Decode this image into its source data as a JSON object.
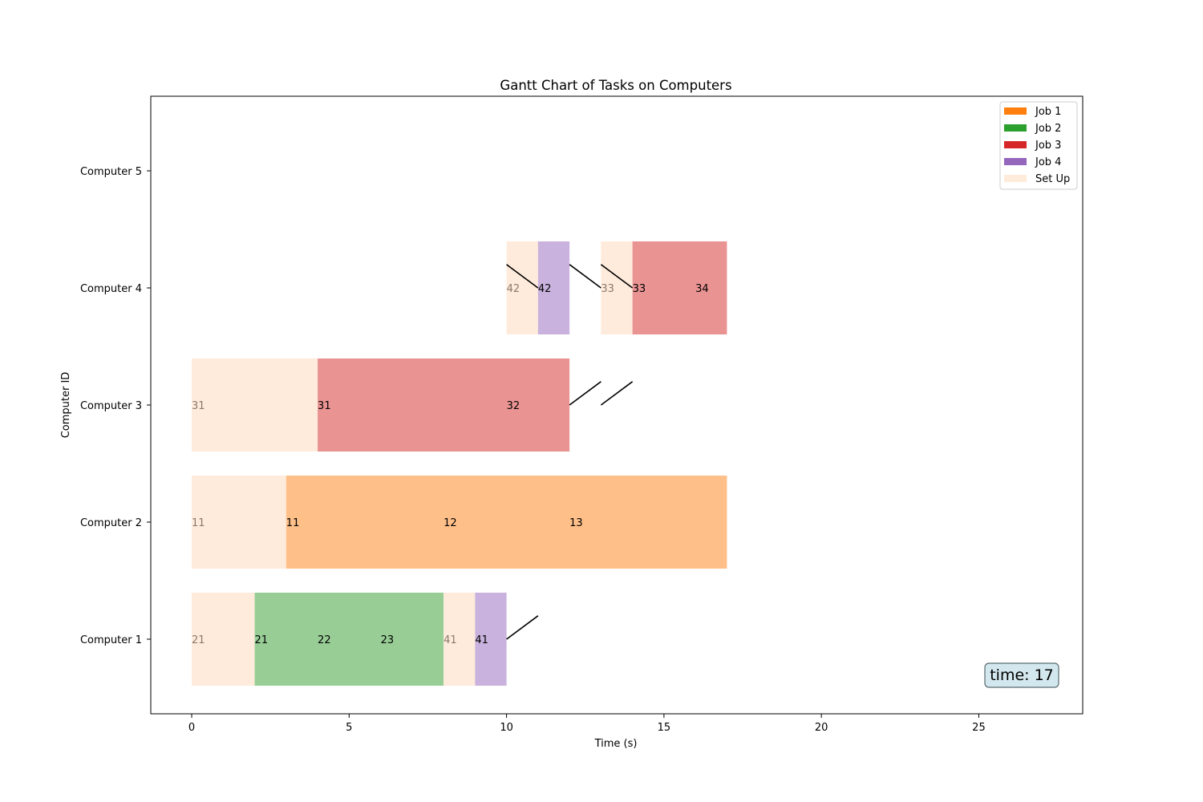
{
  "chart_data": {
    "type": "gantt",
    "title": "Gantt Chart of Tasks on Computers",
    "xlabel": "Time (s)",
    "ylabel": "Computer ID",
    "xlim": [
      -1.3,
      28.3
    ],
    "xticks": [
      0,
      5,
      10,
      15,
      20,
      25
    ],
    "categories": [
      "Computer 1",
      "Computer 2",
      "Computer 3",
      "Computer 4",
      "Computer 5"
    ],
    "grid": false,
    "legend_position": "top-right",
    "legend": [
      {
        "label": "Job 1",
        "color": "#ff7f0e",
        "style": "job"
      },
      {
        "label": "Job 2",
        "color": "#2ca02c",
        "style": "job"
      },
      {
        "label": "Job 3",
        "color": "#d62728",
        "style": "job"
      },
      {
        "label": "Job 4",
        "color": "#9467bd",
        "style": "job"
      },
      {
        "label": "Set Up",
        "color": "#ffebd9",
        "style": "setup"
      }
    ],
    "colors": {
      "setup": "#ffebdb",
      "job1": "#febf88",
      "job2": "#98ce96",
      "job3": "#e99392",
      "job4": "#c9b2dd"
    },
    "bars": [
      {
        "computer": 1,
        "start": 0,
        "end": 2,
        "kind": "setup"
      },
      {
        "computer": 1,
        "start": 2,
        "end": 8,
        "kind": "job2"
      },
      {
        "computer": 1,
        "start": 8,
        "end": 9,
        "kind": "setup"
      },
      {
        "computer": 1,
        "start": 9,
        "end": 10,
        "kind": "job4"
      },
      {
        "computer": 2,
        "start": 0,
        "end": 3,
        "kind": "setup"
      },
      {
        "computer": 2,
        "start": 3,
        "end": 17,
        "kind": "job1"
      },
      {
        "computer": 3,
        "start": 0,
        "end": 4,
        "kind": "setup"
      },
      {
        "computer": 3,
        "start": 4,
        "end": 12,
        "kind": "job3"
      },
      {
        "computer": 4,
        "start": 10,
        "end": 11,
        "kind": "setup"
      },
      {
        "computer": 4,
        "start": 11,
        "end": 12,
        "kind": "job4"
      },
      {
        "computer": 4,
        "start": 13,
        "end": 14,
        "kind": "setup"
      },
      {
        "computer": 4,
        "start": 14,
        "end": 17,
        "kind": "job3"
      }
    ],
    "task_labels": [
      {
        "computer": 1,
        "x": 0,
        "text": "21",
        "kind": "setup"
      },
      {
        "computer": 1,
        "x": 2,
        "text": "21",
        "kind": "task"
      },
      {
        "computer": 1,
        "x": 4,
        "text": "22",
        "kind": "task"
      },
      {
        "computer": 1,
        "x": 6,
        "text": "23",
        "kind": "task"
      },
      {
        "computer": 1,
        "x": 8,
        "text": "41",
        "kind": "setup"
      },
      {
        "computer": 1,
        "x": 9,
        "text": "41",
        "kind": "task"
      },
      {
        "computer": 2,
        "x": 0,
        "text": "11",
        "kind": "setup"
      },
      {
        "computer": 2,
        "x": 3,
        "text": "11",
        "kind": "task"
      },
      {
        "computer": 2,
        "x": 8,
        "text": "12",
        "kind": "task"
      },
      {
        "computer": 2,
        "x": 12,
        "text": "13",
        "kind": "task"
      },
      {
        "computer": 3,
        "x": 0,
        "text": "31",
        "kind": "setup"
      },
      {
        "computer": 3,
        "x": 4,
        "text": "31",
        "kind": "task"
      },
      {
        "computer": 3,
        "x": 10,
        "text": "32",
        "kind": "task"
      },
      {
        "computer": 4,
        "x": 10,
        "text": "42",
        "kind": "setup"
      },
      {
        "computer": 4,
        "x": 11,
        "text": "42",
        "kind": "task"
      },
      {
        "computer": 4,
        "x": 13,
        "text": "33",
        "kind": "setup"
      },
      {
        "computer": 4,
        "x": 14,
        "text": "33",
        "kind": "task"
      },
      {
        "computer": 4,
        "x": 16,
        "text": "34",
        "kind": "task"
      }
    ],
    "transfer_lines": [
      {
        "x1": 10,
        "y1": 1,
        "x2": 11,
        "y2": 1.2
      },
      {
        "x1": 12,
        "y1": 3,
        "x2": 13,
        "y2": 3.2
      },
      {
        "x1": 13,
        "y1": 3,
        "x2": 14,
        "y2": 3.2
      },
      {
        "x1": 10,
        "y1": 4.2,
        "x2": 11,
        "y2": 4
      },
      {
        "x1": 12,
        "y1": 4.2,
        "x2": 13,
        "y2": 4
      },
      {
        "x1": 13,
        "y1": 4.2,
        "x2": 14,
        "y2": 4
      }
    ],
    "time_box": {
      "label": "time: 17",
      "value": 17,
      "position": "bottom-right"
    }
  }
}
